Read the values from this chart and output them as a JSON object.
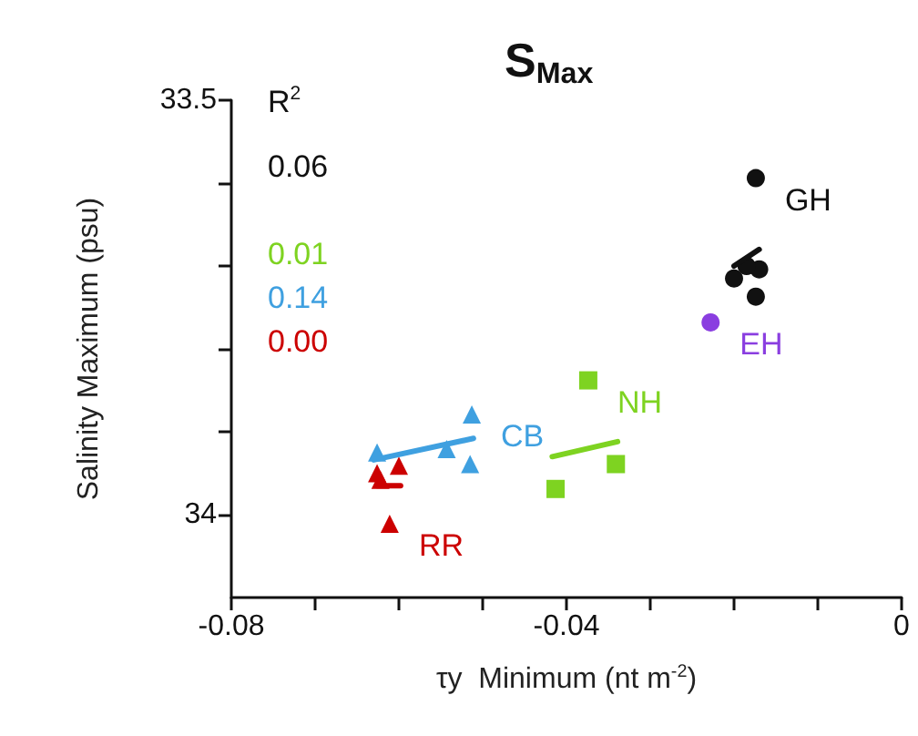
{
  "chart_data": {
    "type": "scatter",
    "title": "S$_{Max}$",
    "xlabel": "τy  Minimum (nt m$^{-2}$)",
    "ylabel": "Salinity Maximum (psu)",
    "annotations": [
      "R$^{2}$",
      "0.06",
      "0.01",
      "0.14",
      "0.00"
    ],
    "xlim": [
      -0.08,
      0
    ],
    "xticks": [
      -0.08,
      {
        "value": -0.07,
        "label": null
      },
      {
        "value": -0.06,
        "label": null
      },
      {
        "value": -0.05,
        "label": null
      },
      -0.04,
      {
        "value": -0.03,
        "label": null
      },
      {
        "value": -0.02,
        "label": null
      },
      {
        "value": -0.01,
        "label": null
      },
      0
    ],
    "ylim": [
      34.1,
      33.5
    ],
    "yticks": [
      33.5,
      {
        "value": 33.6,
        "label": null
      },
      {
        "value": 33.7,
        "label": null
      },
      {
        "value": 33.8,
        "label": null
      },
      {
        "value": 33.9,
        "label": null
      },
      34
    ],
    "grid": false,
    "legend": false,
    "series": [
      {
        "name": "GH",
        "color": "#111111",
        "marker": "circle",
        "x": [
          -0.0174,
          -0.02,
          -0.017,
          -0.0174,
          -0.0185
        ],
        "values": [
          33.594,
          33.715,
          33.704,
          33.737,
          33.7
        ]
      },
      {
        "type": "line",
        "color": "#111111",
        "marker": "none",
        "x": [
          -0.02,
          -0.017
        ],
        "values": [
          33.7,
          33.68
        ]
      },
      {
        "name": "EH",
        "color": "#8a3ee0",
        "marker": "circle",
        "x": [
          -0.0228
        ],
        "values": [
          33.768
        ]
      },
      {
        "name": "NH",
        "color": "#7ed321",
        "marker": "square",
        "x": [
          -0.0374,
          -0.0341,
          -0.0413
        ],
        "values": [
          33.838,
          33.939,
          33.969
        ]
      },
      {
        "type": "line",
        "color": "#7ed321",
        "marker": "none",
        "x": [
          -0.0417,
          -0.0339
        ],
        "values": [
          33.93,
          33.912
        ]
      },
      {
        "name": "CB",
        "color": "#3fa0e0",
        "marker": "triangle",
        "x": [
          -0.0513,
          -0.0515,
          -0.0543,
          -0.0626
        ],
        "values": [
          33.879,
          33.939,
          33.921,
          33.925
        ]
      },
      {
        "type": "line",
        "color": "#3fa0e0",
        "marker": "none",
        "x": [
          -0.063,
          -0.0511
        ],
        "values": [
          33.934,
          33.908
        ]
      },
      {
        "name": "RR",
        "color": "#cc0000",
        "marker": "triangle",
        "x": [
          -0.0611,
          -0.06,
          -0.0626,
          -0.0622
        ],
        "values": [
          34.011,
          33.941,
          33.95,
          33.958
        ]
      },
      {
        "type": "line",
        "color": "#cc0000",
        "marker": "none",
        "x": [
          -0.0626,
          -0.0598
        ],
        "values": [
          33.965,
          33.965
        ]
      }
    ]
  }
}
